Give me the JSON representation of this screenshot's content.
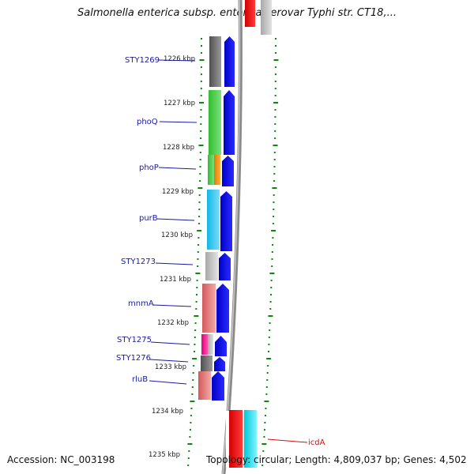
{
  "title": "Salmonella enterica subsp. enterica serovar Typhi str. CT18,...",
  "accession": "Accession: NC_003198",
  "topology": "Topology: circular; Length: 4,809,037 bp; Genes: 4,502",
  "colors": {
    "forward_arrow": "#0000e0",
    "leader_line": "#1a1aa6",
    "highlight_label": "#d01010",
    "tick": "#0a8a0a"
  },
  "position_labels": [
    "1226 kbp",
    "1227 kbp",
    "1228 kbp",
    "1229 kbp",
    "1230 kbp",
    "1231 kbp",
    "1232 kbp",
    "1233 kbp",
    "1234 kbp",
    "1235 kbp"
  ],
  "gene_labels": [
    {
      "name": "STY1269"
    },
    {
      "name": "phoQ"
    },
    {
      "name": "phoP"
    },
    {
      "name": "purB"
    },
    {
      "name": "STY1273"
    },
    {
      "name": "mnmA"
    },
    {
      "name": "STY1275"
    },
    {
      "name": "STY1276"
    },
    {
      "name": "rluB"
    }
  ],
  "highlight_gene": {
    "name": "icdA"
  }
}
